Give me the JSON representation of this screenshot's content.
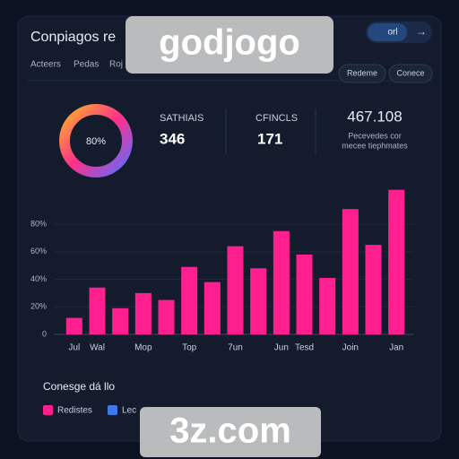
{
  "header": {
    "title": "Conpiagos re",
    "tabs": [
      "Acteers",
      "Pedas",
      "Roj"
    ],
    "button": "orl",
    "actions": [
      "Redeme",
      "Conece"
    ]
  },
  "watermarks": [
    "godjogo",
    "3z.com"
  ],
  "donut": {
    "label": "80%"
  },
  "stats": [
    {
      "label": "SATHIAIS",
      "value": 346
    },
    {
      "label": "CFINCLS",
      "value": 171
    },
    {
      "value": 467.108,
      "lines": [
        "Pecevedes cor",
        "mecee tiephmates"
      ]
    }
  ],
  "legend": {
    "title": "Conesge dá llo",
    "items": [
      {
        "label": "Lec",
        "color": "#3f78e8"
      }
    ]
  },
  "chart_data": {
    "type": "bar",
    "categories": [
      "Jul",
      "Wal",
      null,
      "Mop",
      null,
      "Top",
      null,
      "7un",
      null,
      "Jun",
      "Tesd",
      null,
      "Join",
      null,
      "Jan"
    ],
    "series": [
      {
        "name": "Redistes",
        "color": "#ff1f8f",
        "values": [
          12,
          34,
          19,
          30,
          25,
          49,
          38,
          64,
          48,
          75,
          58,
          41,
          91,
          65,
          105
        ]
      }
    ],
    "ylim": [
      0,
      110
    ],
    "yticks": [
      0,
      {
        "value": 20,
        "label": "20%"
      },
      {
        "value": 40,
        "label": "40%"
      },
      {
        "value": 60,
        "label": "60%"
      },
      {
        "value": 80,
        "label": "80%"
      }
    ],
    "grid": true
  }
}
